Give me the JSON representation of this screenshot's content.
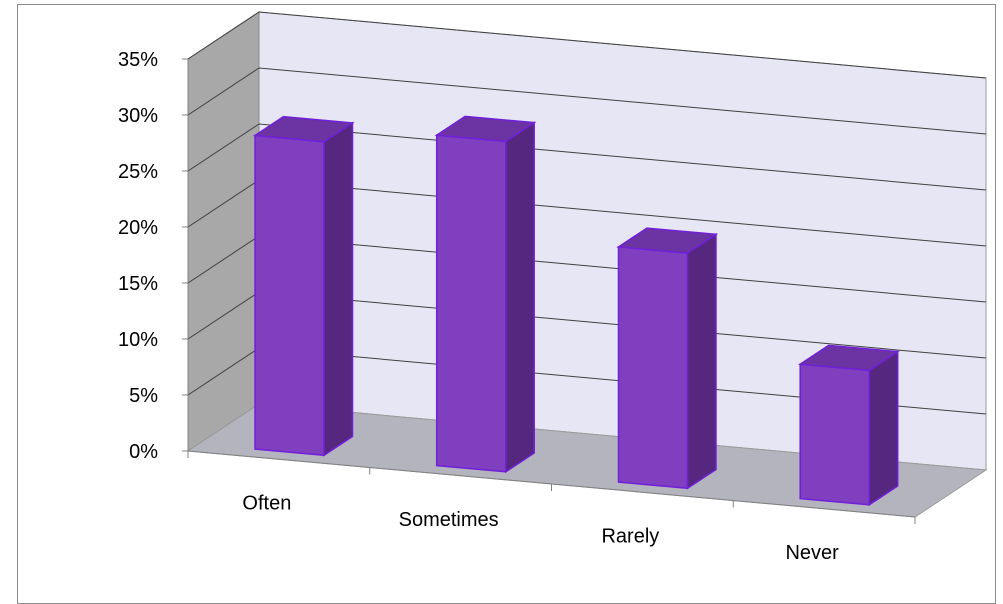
{
  "chart_data": {
    "type": "bar",
    "categories": [
      "Often",
      "Sometimes",
      "Rarely",
      "Never"
    ],
    "values": [
      28,
      29.5,
      21,
      12
    ],
    "title": "",
    "xlabel": "",
    "ylabel": "",
    "ylim": [
      0,
      35
    ],
    "yticks": [
      0,
      5,
      10,
      15,
      20,
      25,
      30,
      35
    ],
    "ytick_format": "percent",
    "grid": true,
    "legend": "none",
    "style": "3d-column",
    "colors": {
      "bar_front": "#7f3fbf",
      "bar_side": "#55277f",
      "bar_top": "#6c33a3",
      "bar_edge": "#7020d8",
      "back_wall": "#e6e6f4",
      "side_wall": "#a8a8a8",
      "floor": "#b4b4be",
      "gridline": "#404040"
    }
  }
}
